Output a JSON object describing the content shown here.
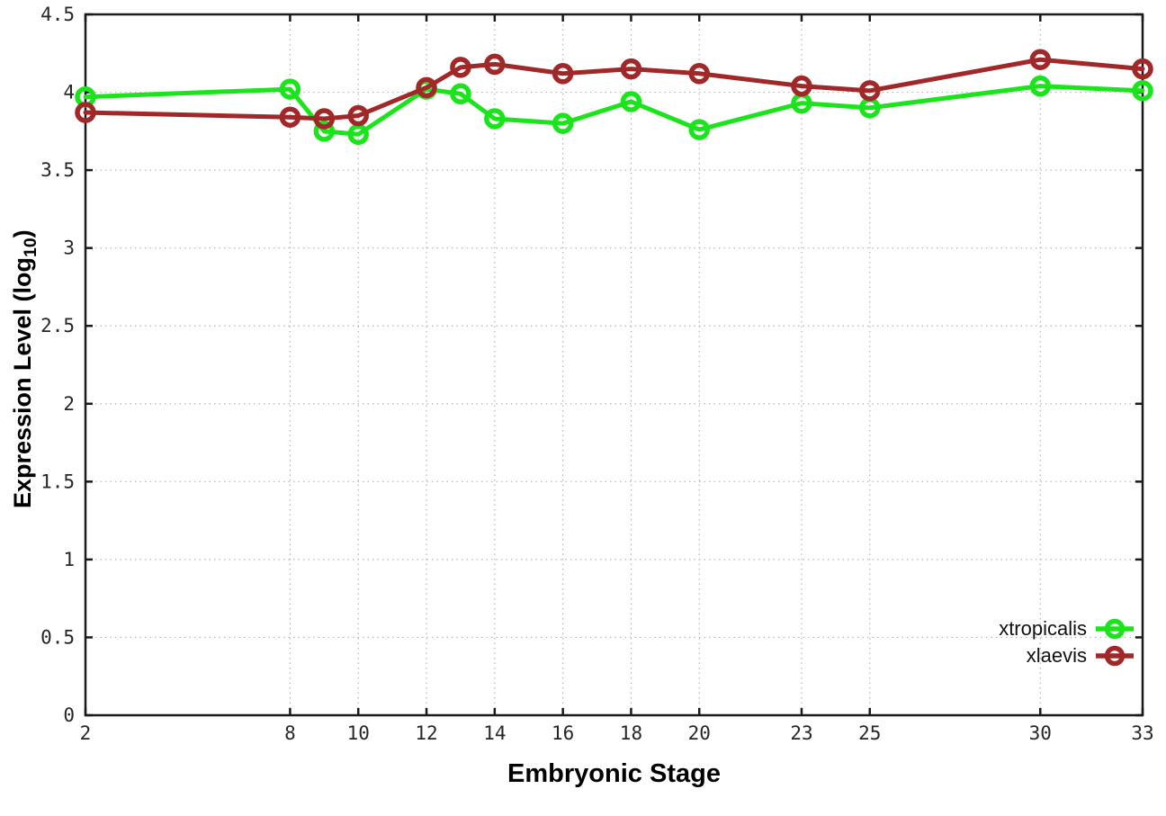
{
  "chart_data": {
    "type": "line",
    "xlabel": "Embryonic Stage",
    "ylabel_pre": "Expression Level (log",
    "ylabel_sub": "10",
    "ylabel_post": ")",
    "x": [
      2,
      8,
      9,
      10,
      12,
      13,
      14,
      16,
      18,
      20,
      23,
      25,
      30,
      33
    ],
    "xlim": [
      2,
      33
    ],
    "ylim": [
      0,
      4.5
    ],
    "xticks": [
      2,
      8,
      10,
      12,
      14,
      16,
      18,
      20,
      23,
      25,
      30,
      33
    ],
    "xtick_labels": [
      "2",
      "8",
      "10",
      "12",
      "14",
      "16",
      "18",
      "20",
      "23",
      "25",
      "30",
      "33"
    ],
    "yticks": [
      0,
      0.5,
      1,
      1.5,
      2,
      2.5,
      3,
      3.5,
      4,
      4.5
    ],
    "ytick_labels": [
      "0",
      "0.5",
      "1",
      "1.5",
      "2",
      "2.5",
      "3",
      "3.5",
      "4",
      "4.5"
    ],
    "grid": true,
    "legend_position": "bottom-right-inside",
    "marker": "open-circle",
    "series": [
      {
        "name": "xtropicalis",
        "color": "#1ce41c",
        "values": [
          3.97,
          4.02,
          3.75,
          3.73,
          4.02,
          3.99,
          3.83,
          3.8,
          3.94,
          3.76,
          3.93,
          3.9,
          4.04,
          4.01
        ]
      },
      {
        "name": "xlaevis",
        "color": "#a02828",
        "values": [
          3.87,
          3.84,
          3.83,
          3.85,
          4.03,
          4.16,
          4.18,
          4.12,
          4.15,
          4.12,
          4.04,
          4.01,
          4.21,
          4.15
        ]
      }
    ],
    "colors": {
      "axis": "#1a1a1a",
      "grid": "#b5b5b5",
      "background": "#ffffff"
    }
  }
}
